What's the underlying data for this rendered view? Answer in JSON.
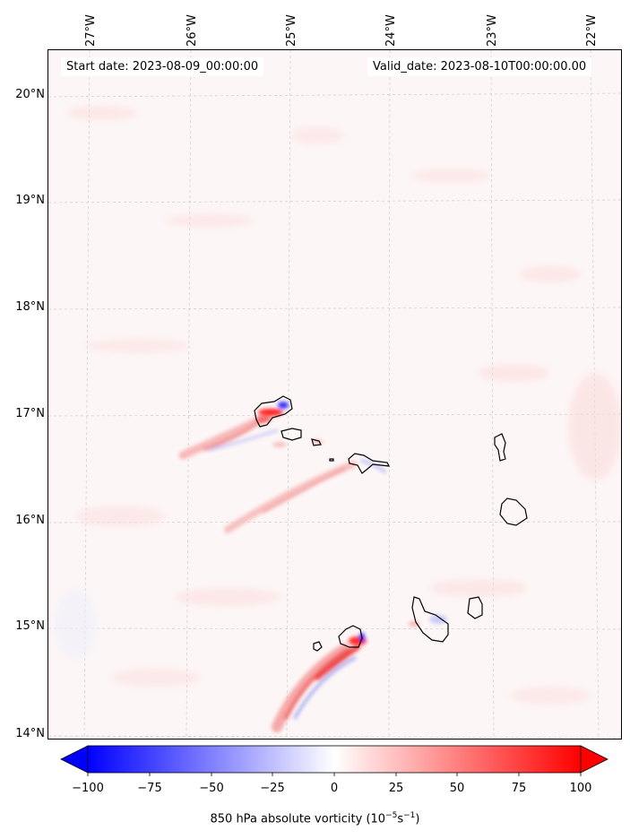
{
  "header": {
    "start_date": "Start date: 2023-08-09_00:00:00",
    "valid_date": "Valid_date: 2023-08-10T00:00:00.00"
  },
  "axes": {
    "lon_labels": [
      "27°W",
      "26°W",
      "25°W",
      "24°W",
      "23°W",
      "22°W"
    ],
    "lat_labels": [
      "20°N",
      "19°N",
      "18°N",
      "17°N",
      "16°N",
      "15°N",
      "14°N"
    ]
  },
  "colorbar": {
    "ticks": [
      "−100",
      "−75",
      "−50",
      "−25",
      "0",
      "25",
      "50",
      "75",
      "100"
    ],
    "label_prefix": "850 hPa absolute vorticity (10",
    "label_exp1": "−5",
    "label_mid": "s",
    "label_exp2": "−1",
    "label_suffix": ")",
    "min_color": "#0000ff",
    "mid_color": "#ffffff",
    "max_color": "#ff0000"
  },
  "colors": {
    "background_field": "#fdf6f6",
    "coastline": "#000000",
    "gridline": "#cccccc"
  }
}
